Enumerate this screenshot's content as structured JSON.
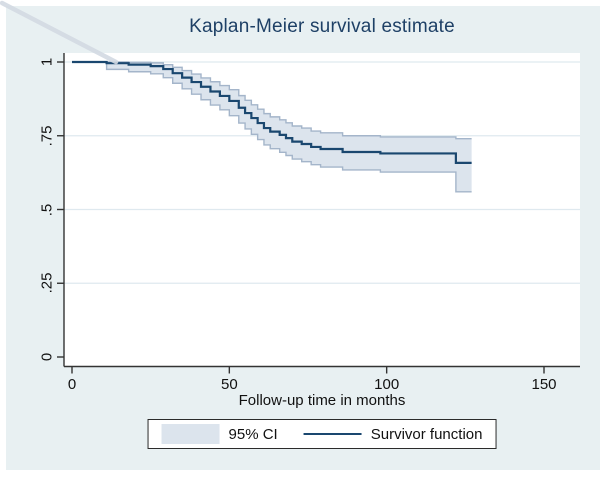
{
  "window": {
    "page_bg": "#ffffff",
    "canvas_bg": "#e8f0f2"
  },
  "chart_data": {
    "type": "line",
    "subtype": "kaplan-meier-step",
    "title": "Kaplan-Meier survival estimate",
    "xlabel": "Follow-up time in months",
    "ylabel": "",
    "xlim": [
      0,
      150
    ],
    "ylim": [
      0,
      1
    ],
    "x_ticks": [
      0,
      50,
      100,
      150
    ],
    "x_tick_labels": [
      "0",
      "50",
      "100",
      "150"
    ],
    "y_ticks": [
      0,
      0.25,
      0.5,
      0.75,
      1
    ],
    "y_tick_labels": [
      "0",
      ".25",
      ".5",
      ".75",
      "1"
    ],
    "grid": true,
    "gridline_values": [
      0.25,
      0.5,
      0.75,
      1
    ],
    "legend_position": "bottom-center",
    "colors": {
      "survivor_line": "#1a476f",
      "ci_fill": "#dce4ed",
      "ci_outline": "#a4b5ca",
      "gridline": "#dfe9ef",
      "axis": "#333333",
      "title": "#1e4066",
      "artifact": "#d3dae3"
    },
    "x_end": 127,
    "time": [
      0,
      11,
      18,
      25,
      29,
      32,
      35,
      38,
      41,
      44,
      47,
      50,
      53,
      55,
      57,
      59,
      61,
      63,
      66,
      68,
      70,
      73,
      76,
      79,
      86,
      98,
      122
    ],
    "series": [
      {
        "name": "Survivor function",
        "values": [
          1,
          0.996,
          0.991,
          0.986,
          0.976,
          0.962,
          0.947,
          0.932,
          0.916,
          0.9,
          0.885,
          0.868,
          0.845,
          0.827,
          0.81,
          0.793,
          0.776,
          0.764,
          0.753,
          0.742,
          0.73,
          0.722,
          0.712,
          0.705,
          0.695,
          0.69,
          0.658
        ]
      },
      {
        "name": "95% CI upper bound",
        "values": [
          1,
          1.0,
          0.999,
          0.997,
          0.991,
          0.982,
          0.971,
          0.959,
          0.946,
          0.933,
          0.92,
          0.906,
          0.886,
          0.87,
          0.855,
          0.84,
          0.825,
          0.814,
          0.804,
          0.794,
          0.783,
          0.776,
          0.766,
          0.76,
          0.75,
          0.746,
          0.74
        ]
      },
      {
        "name": "95% CI lower bound",
        "values": [
          1,
          0.975,
          0.967,
          0.96,
          0.947,
          0.928,
          0.909,
          0.891,
          0.872,
          0.854,
          0.838,
          0.818,
          0.793,
          0.773,
          0.755,
          0.737,
          0.719,
          0.706,
          0.694,
          0.683,
          0.671,
          0.662,
          0.652,
          0.644,
          0.634,
          0.627,
          0.56
        ]
      }
    ]
  },
  "legend": {
    "items": [
      {
        "label": "95% CI",
        "swatch": "area"
      },
      {
        "label": "Survivor function",
        "swatch": "line"
      }
    ]
  }
}
